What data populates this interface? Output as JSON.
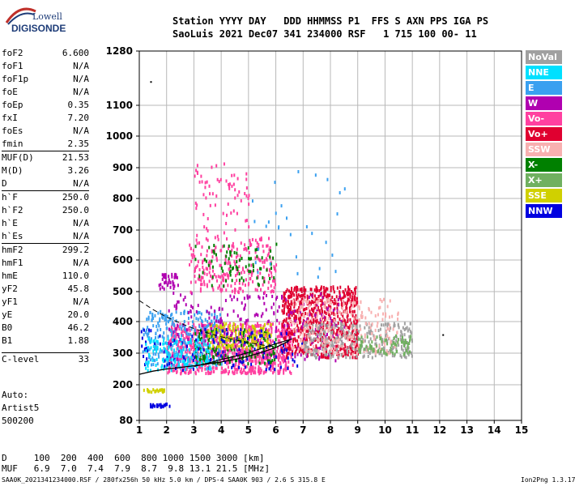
{
  "logo": {
    "top": "Lowell",
    "bottom": "DIGISONDE"
  },
  "header": {
    "line1": "Station YYYY DAY   DDD HHMMSS P1  FFS S AXN PPS IGA PS",
    "line2": "SaoLuis 2021 Dec07 341 234000 RSF   1 715 100 00- 11"
  },
  "params": [
    {
      "label": "foF2",
      "value": "6.600"
    },
    {
      "label": "foF1",
      "value": "N/A"
    },
    {
      "label": "foF1p",
      "value": "N/A"
    },
    {
      "label": "foE",
      "value": "N/A"
    },
    {
      "label": "foEp",
      "value": "0.35"
    },
    {
      "label": "fxI",
      "value": "7.20"
    },
    {
      "label": "foEs",
      "value": "N/A"
    },
    {
      "label": "fmin",
      "value": "2.35"
    },
    {
      "label": "MUF(D)",
      "value": "21.53"
    },
    {
      "label": "M(D)",
      "value": "3.26"
    },
    {
      "label": "D",
      "value": "N/A"
    },
    {
      "label": "h`F",
      "value": "250.0"
    },
    {
      "label": "h`F2",
      "value": "250.0"
    },
    {
      "label": "h`E",
      "value": "N/A"
    },
    {
      "label": "h`Es",
      "value": "N/A"
    },
    {
      "label": "hmF2",
      "value": "299.2"
    },
    {
      "label": "hmF1",
      "value": "N/A"
    },
    {
      "label": "hmE",
      "value": "110.0"
    },
    {
      "label": "yF2",
      "value": "45.8"
    },
    {
      "label": "yF1",
      "value": "N/A"
    },
    {
      "label": "yE",
      "value": "20.0"
    },
    {
      "label": "B0",
      "value": "46.2"
    },
    {
      "label": "B1",
      "value": "1.88"
    },
    {
      "label": "C-level",
      "value": "33"
    }
  ],
  "status": {
    "line1": "Auto:",
    "line2": "Artist5",
    "line3": "500200"
  },
  "legend": [
    {
      "label": "NoVal",
      "color": "#a0a0a0"
    },
    {
      "label": "NNE",
      "color": "#00e0ff"
    },
    {
      "label": "E",
      "color": "#3aa0f0"
    },
    {
      "label": "W",
      "color": "#b000b0"
    },
    {
      "label": "Vo-",
      "color": "#ff40a0"
    },
    {
      "label": "Vo+",
      "color": "#e00030"
    },
    {
      "label": "SSW",
      "color": "#f8b0b0"
    },
    {
      "label": "X-",
      "color": "#008000"
    },
    {
      "label": "X+",
      "color": "#70b060"
    },
    {
      "label": "SSE",
      "color": "#d0d000"
    },
    {
      "label": "NNW",
      "color": "#0000e0"
    }
  ],
  "mufTable": {
    "dRow": "D     100  200  400  600  800 1000 1500 3000 [km]",
    "mufRow": "MUF   6.9  7.0  7.4  7.9  8.7  9.8 13.1 21.5 [MHz]"
  },
  "footer": {
    "left": "SAA0K_2021341234000.RSF / 280fx256h 50 kHz 5.0 km / DPS-4 SAA0K 903 / 2.6 S 315.8 E",
    "right": "Ion2Png 1.3.17"
  },
  "chart_data": {
    "type": "scatter",
    "x_ticks": [
      "1",
      "2",
      "3",
      "4",
      "5",
      "6",
      "7",
      "8",
      "9",
      "10",
      "11",
      "12",
      "13",
      "14",
      "15"
    ],
    "y_ticks": [
      "80",
      "200",
      "300",
      "400",
      "500",
      "600",
      "700",
      "800",
      "900",
      "1000",
      "1100",
      "1280"
    ],
    "xlim": [
      1,
      15
    ],
    "ylim": [
      80,
      1280
    ],
    "y_scale": "reciprocal-like",
    "grid": true,
    "legend_placement": "right",
    "trace_virtual_height": {
      "x": [
        1.0,
        1.5,
        2.0,
        2.5,
        3.0,
        3.5,
        4.0,
        4.5,
        5.0,
        5.5,
        6.0,
        6.5
      ],
      "y": [
        233,
        243,
        250,
        255,
        260,
        266,
        272,
        280,
        290,
        303,
        318,
        340
      ]
    },
    "profile_dashed": {
      "x": [
        1.0,
        1.5,
        2.0,
        2.5,
        3.0,
        3.5,
        4.0,
        4.5,
        5.0,
        5.5,
        6.0
      ],
      "y": [
        470,
        440,
        415,
        395,
        378,
        364,
        352,
        342,
        333,
        326,
        320
      ]
    },
    "profile_solid": {
      "x": [
        3.0,
        3.5,
        4.0,
        4.5,
        5.0,
        5.5,
        6.0,
        6.6
      ],
      "y": [
        258,
        268,
        280,
        290,
        302,
        315,
        330,
        345
      ]
    },
    "echo_clusters": [
      {
        "color": "#ff40a0",
        "xmin": 2.0,
        "xmax": 6.6,
        "ymin": 240,
        "ymax": 400,
        "count": 900
      },
      {
        "color": "#e00030",
        "xmin": 6.2,
        "xmax": 9.0,
        "ymin": 290,
        "ymax": 520,
        "count": 700
      },
      {
        "color": "#3aa0f0",
        "xmin": 1.1,
        "xmax": 4.0,
        "ymin": 260,
        "ymax": 440,
        "count": 300
      },
      {
        "color": "#008000",
        "xmin": 3.0,
        "xmax": 6.0,
        "ymin": 270,
        "ymax": 380,
        "count": 180
      },
      {
        "color": "#d0d000",
        "xmin": 3.5,
        "xmax": 5.8,
        "ymin": 320,
        "ymax": 400,
        "count": 160
      },
      {
        "color": "#b000b0",
        "xmin": 2.0,
        "xmax": 8.5,
        "ymin": 280,
        "ymax": 500,
        "count": 250
      },
      {
        "color": "#0000e0",
        "xmin": 1.0,
        "xmax": 7.0,
        "ymin": 250,
        "ymax": 380,
        "count": 120
      },
      {
        "color": "#00e0ff",
        "xmin": 1.2,
        "xmax": 3.6,
        "ymin": 250,
        "ymax": 350,
        "count": 140
      },
      {
        "color": "#a0a0a0",
        "xmin": 7.0,
        "xmax": 11.0,
        "ymin": 290,
        "ymax": 400,
        "count": 300
      },
      {
        "color": "#f8b0b0",
        "xmin": 6.5,
        "xmax": 10.5,
        "ymin": 300,
        "ymax": 480,
        "count": 250
      },
      {
        "color": "#70b060",
        "xmin": 9.0,
        "xmax": 11.0,
        "ymin": 300,
        "ymax": 360,
        "count": 80
      },
      {
        "color": "#ff40a0",
        "xmin": 2.8,
        "xmax": 6.0,
        "ymin": 500,
        "ymax": 680,
        "count": 260
      },
      {
        "color": "#008000",
        "xmin": 3.0,
        "xmax": 6.0,
        "ymin": 520,
        "ymax": 660,
        "count": 80
      },
      {
        "color": "#ff40a0",
        "xmin": 3.0,
        "xmax": 5.0,
        "ymin": 680,
        "ymax": 920,
        "count": 70
      },
      {
        "color": "#b000b0",
        "xmin": 1.7,
        "xmax": 2.4,
        "ymin": 510,
        "ymax": 560,
        "count": 40
      },
      {
        "color": "#0000e0",
        "xmin": 1.2,
        "xmax": 2.1,
        "ymin": 130,
        "ymax": 140,
        "count": 25
      },
      {
        "color": "#d0d000",
        "xmin": 1.1,
        "xmax": 1.9,
        "ymin": 180,
        "ymax": 190,
        "count": 25
      },
      {
        "color": "#3aa0f0",
        "xmin": 5.0,
        "xmax": 8.5,
        "ymin": 550,
        "ymax": 900,
        "count": 30
      }
    ],
    "lone_points": [
      {
        "x": 1.4,
        "y": 1180,
        "color": "#000000"
      },
      {
        "x": 12.1,
        "y": 360,
        "color": "#000000"
      }
    ]
  }
}
